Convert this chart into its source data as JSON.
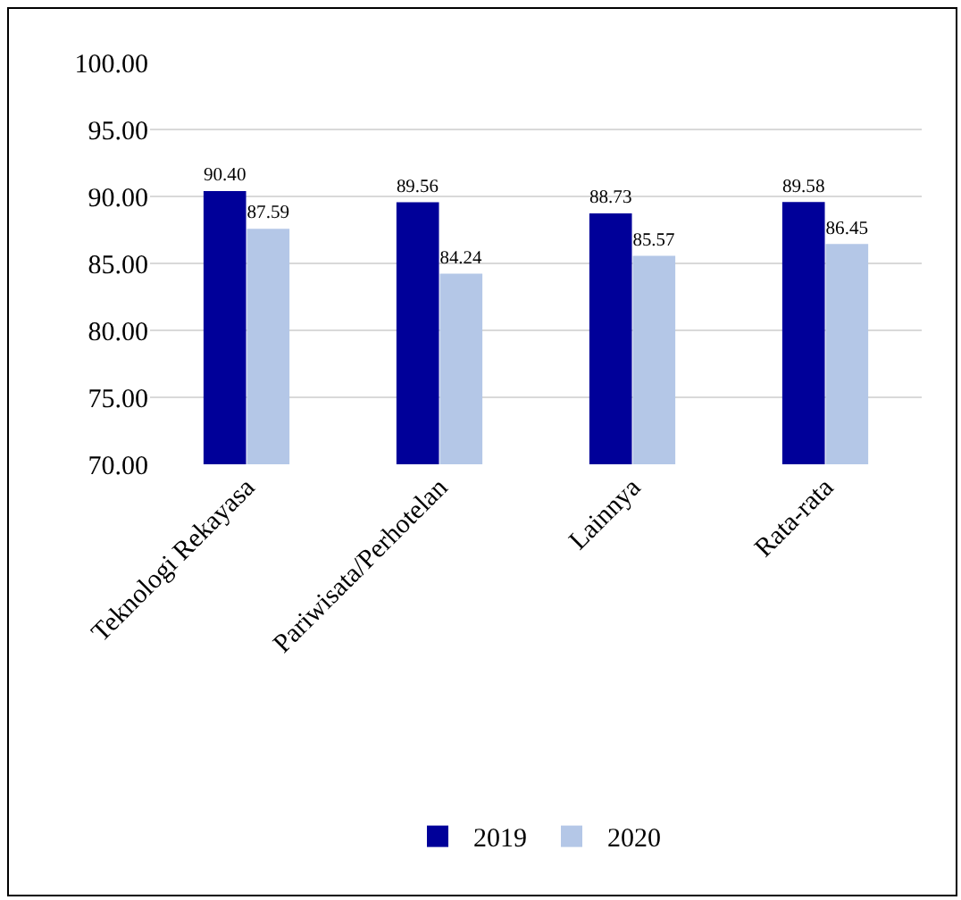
{
  "chart_data": {
    "type": "bar",
    "categories": [
      "Teknologi Rekayasa",
      "Pariwisata/Perhotelan",
      "Lainnya",
      "Rata-rata"
    ],
    "series": [
      {
        "name": "2019",
        "color": "#000099",
        "values": [
          90.4,
          89.56,
          88.73,
          89.58
        ],
        "value_labels": [
          "90.40",
          "89.56",
          "88.73",
          "89.58"
        ]
      },
      {
        "name": "2020",
        "color": "#b4c7e7",
        "values": [
          87.59,
          84.24,
          85.57,
          86.45
        ],
        "value_labels": [
          "87.59",
          "84.24",
          "85.57",
          "86.45"
        ]
      }
    ],
    "ylim": [
      70,
      100
    ],
    "yticks": [
      {
        "value": 70,
        "label": "70.00"
      },
      {
        "value": 75,
        "label": "75.00"
      },
      {
        "value": 80,
        "label": "80.00"
      },
      {
        "value": 85,
        "label": "85.00"
      },
      {
        "value": 90,
        "label": "90.00"
      },
      {
        "value": 95,
        "label": "95.00"
      },
      {
        "value": 100,
        "label": "100.00"
      }
    ],
    "grid": "y",
    "legend": "bottom"
  }
}
